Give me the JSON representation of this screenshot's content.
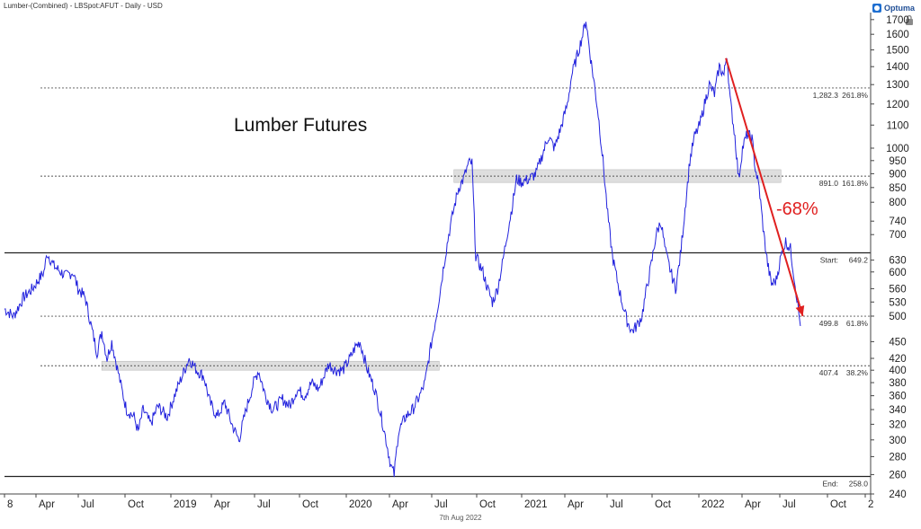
{
  "header": {
    "series_label": "Lumber-(Combined) - LBSpot:AFUT - Daily - USD",
    "brand": "Optuma"
  },
  "footer": {
    "date": "7th Aug 2022"
  },
  "chart_data": {
    "type": "line",
    "title": "Lumber Futures",
    "y_scale": "log",
    "ylim": [
      240,
      1750
    ],
    "y_ticks": [
      240,
      260,
      280,
      300,
      320,
      340,
      360,
      380,
      400,
      420,
      450,
      500,
      530,
      560,
      600,
      630,
      700,
      740,
      800,
      850,
      900,
      950,
      1000,
      1100,
      1200,
      1300,
      1400,
      1500,
      1600,
      1700
    ],
    "x_ticks": [
      "8",
      "Apr",
      "Jul",
      "Oct",
      "2019",
      "Apr",
      "Jul",
      "Oct",
      "2020",
      "Apr",
      "Jul",
      "Oct",
      "2021",
      "Apr",
      "Jul",
      "Oct",
      "2022",
      "Apr",
      "Jul",
      "Oct",
      "2"
    ],
    "x_range": [
      "2018-01-01",
      "2022-12-31"
    ],
    "line_color": "#2222dd",
    "series": [
      {
        "points": [
          [
            "2018-01-01",
            515
          ],
          [
            "2018-01-20",
            500
          ],
          [
            "2018-02-10",
            540
          ],
          [
            "2018-03-01",
            560
          ],
          [
            "2018-03-25",
            600
          ],
          [
            "2018-04-01",
            649
          ],
          [
            "2018-04-15",
            615
          ],
          [
            "2018-05-10",
            590
          ],
          [
            "2018-05-25",
            600
          ],
          [
            "2018-06-05",
            560
          ],
          [
            "2018-06-20",
            540
          ],
          [
            "2018-07-05",
            470
          ],
          [
            "2018-07-15",
            430
          ],
          [
            "2018-07-25",
            470
          ],
          [
            "2018-08-05",
            420
          ],
          [
            "2018-08-15",
            450
          ],
          [
            "2018-08-25",
            410
          ],
          [
            "2018-09-05",
            370
          ],
          [
            "2018-09-15",
            340
          ],
          [
            "2018-10-01",
            330
          ],
          [
            "2018-10-10",
            310
          ],
          [
            "2018-10-20",
            340
          ],
          [
            "2018-11-05",
            320
          ],
          [
            "2018-11-20",
            345
          ],
          [
            "2018-12-10",
            330
          ],
          [
            "2018-12-25",
            360
          ],
          [
            "2019-01-10",
            390
          ],
          [
            "2019-01-25",
            420
          ],
          [
            "2019-02-10",
            400
          ],
          [
            "2019-02-25",
            390
          ],
          [
            "2019-03-10",
            350
          ],
          [
            "2019-03-25",
            330
          ],
          [
            "2019-04-10",
            350
          ],
          [
            "2019-04-25",
            320
          ],
          [
            "2019-05-10",
            300
          ],
          [
            "2019-05-25",
            340
          ],
          [
            "2019-06-10",
            380
          ],
          [
            "2019-06-20",
            400
          ],
          [
            "2019-07-05",
            360
          ],
          [
            "2019-07-20",
            340
          ],
          [
            "2019-08-10",
            355
          ],
          [
            "2019-08-25",
            345
          ],
          [
            "2019-09-10",
            370
          ],
          [
            "2019-09-25",
            360
          ],
          [
            "2019-10-10",
            380
          ],
          [
            "2019-10-25",
            370
          ],
          [
            "2019-11-15",
            410
          ],
          [
            "2019-11-30",
            400
          ],
          [
            "2019-12-15",
            400
          ],
          [
            "2019-12-30",
            420
          ],
          [
            "2020-01-10",
            440
          ],
          [
            "2020-01-20",
            450
          ],
          [
            "2020-02-05",
            400
          ],
          [
            "2020-02-20",
            370
          ],
          [
            "2020-03-05",
            330
          ],
          [
            "2020-03-15",
            300
          ],
          [
            "2020-03-25",
            270
          ],
          [
            "2020-04-01",
            260
          ],
          [
            "2020-04-10",
            310
          ],
          [
            "2020-04-25",
            330
          ],
          [
            "2020-05-10",
            340
          ],
          [
            "2020-05-25",
            360
          ],
          [
            "2020-06-05",
            380
          ],
          [
            "2020-06-15",
            430
          ],
          [
            "2020-06-25",
            480
          ],
          [
            "2020-07-05",
            540
          ],
          [
            "2020-07-15",
            620
          ],
          [
            "2020-07-25",
            700
          ],
          [
            "2020-08-05",
            780
          ],
          [
            "2020-08-15",
            850
          ],
          [
            "2020-08-25",
            880
          ],
          [
            "2020-09-05",
            940
          ],
          [
            "2020-09-12",
            940
          ],
          [
            "2020-09-20",
            640
          ],
          [
            "2020-10-05",
            600
          ],
          [
            "2020-10-15",
            560
          ],
          [
            "2020-10-25",
            530
          ],
          [
            "2020-11-05",
            560
          ],
          [
            "2020-11-15",
            620
          ],
          [
            "2020-11-25",
            700
          ],
          [
            "2020-12-05",
            780
          ],
          [
            "2020-12-15",
            880
          ],
          [
            "2020-12-25",
            870
          ],
          [
            "2021-01-10",
            880
          ],
          [
            "2021-01-25",
            900
          ],
          [
            "2021-02-05",
            960
          ],
          [
            "2021-02-20",
            1050
          ],
          [
            "2021-03-05",
            1000
          ],
          [
            "2021-03-20",
            1100
          ],
          [
            "2021-04-01",
            1200
          ],
          [
            "2021-04-10",
            1350
          ],
          [
            "2021-04-25",
            1500
          ],
          [
            "2021-05-05",
            1620
          ],
          [
            "2021-05-10",
            1700
          ],
          [
            "2021-05-20",
            1450
          ],
          [
            "2021-05-28",
            1300
          ],
          [
            "2021-06-05",
            1150
          ],
          [
            "2021-06-15",
            950
          ],
          [
            "2021-06-25",
            760
          ],
          [
            "2021-07-05",
            640
          ],
          [
            "2021-07-15",
            580
          ],
          [
            "2021-07-25",
            530
          ],
          [
            "2021-08-05",
            490
          ],
          [
            "2021-08-15",
            470
          ],
          [
            "2021-08-25",
            480
          ],
          [
            "2021-09-05",
            500
          ],
          [
            "2021-09-15",
            560
          ],
          [
            "2021-09-25",
            620
          ],
          [
            "2021-10-05",
            700
          ],
          [
            "2021-10-15",
            740
          ],
          [
            "2021-10-25",
            650
          ],
          [
            "2021-11-05",
            600
          ],
          [
            "2021-11-15",
            560
          ],
          [
            "2021-11-25",
            640
          ],
          [
            "2021-12-05",
            780
          ],
          [
            "2021-12-15",
            950
          ],
          [
            "2021-12-25",
            1050
          ],
          [
            "2022-01-05",
            1100
          ],
          [
            "2022-01-15",
            1200
          ],
          [
            "2022-01-25",
            1300
          ],
          [
            "2022-02-05",
            1250
          ],
          [
            "2022-02-15",
            1400
          ],
          [
            "2022-02-25",
            1350
          ],
          [
            "2022-03-03",
            1480
          ],
          [
            "2022-03-10",
            1220
          ],
          [
            "2022-03-20",
            1050
          ],
          [
            "2022-03-28",
            880
          ],
          [
            "2022-04-05",
            1000
          ],
          [
            "2022-04-15",
            1060
          ],
          [
            "2022-04-25",
            1040
          ],
          [
            "2022-05-02",
            920
          ],
          [
            "2022-05-10",
            850
          ],
          [
            "2022-05-20",
            700
          ],
          [
            "2022-05-28",
            620
          ],
          [
            "2022-06-05",
            570
          ],
          [
            "2022-06-15",
            580
          ],
          [
            "2022-06-25",
            640
          ],
          [
            "2022-07-05",
            680
          ],
          [
            "2022-07-15",
            660
          ],
          [
            "2022-07-25",
            570
          ],
          [
            "2022-08-05",
            480
          ]
        ]
      }
    ],
    "levels": [
      {
        "value": 1282.3,
        "label": "1,282.3",
        "pct": "261.8%",
        "style": "dotted"
      },
      {
        "value": 891.0,
        "label": "891.0",
        "pct": "161.8%",
        "style": "dotted"
      },
      {
        "value": 649.2,
        "label": "Start:",
        "pct": "649.2",
        "style": "solid"
      },
      {
        "value": 499.8,
        "label": "499.8",
        "pct": "61.8%",
        "style": "dotted"
      },
      {
        "value": 407.4,
        "label": "407.4",
        "pct": "38.2%",
        "style": "dotted"
      },
      {
        "value": 258.0,
        "label": "End:",
        "pct": "258.0",
        "style": "solid"
      }
    ],
    "zones": [
      {
        "x0": "2018-07-25",
        "x1": "2020-07-05",
        "y0": 400,
        "y1": 415
      },
      {
        "x0": "2020-08-05",
        "x1": "2022-06-25",
        "y0": 868,
        "y1": 915
      }
    ],
    "arrow": {
      "from": [
        "2022-03-01",
        1450
      ],
      "to": [
        "2022-08-10",
        500
      ],
      "color": "#e02020"
    },
    "annotation": {
      "text": "-68%",
      "x": "2022-06-15",
      "y": 760,
      "color": "#e02020"
    }
  }
}
